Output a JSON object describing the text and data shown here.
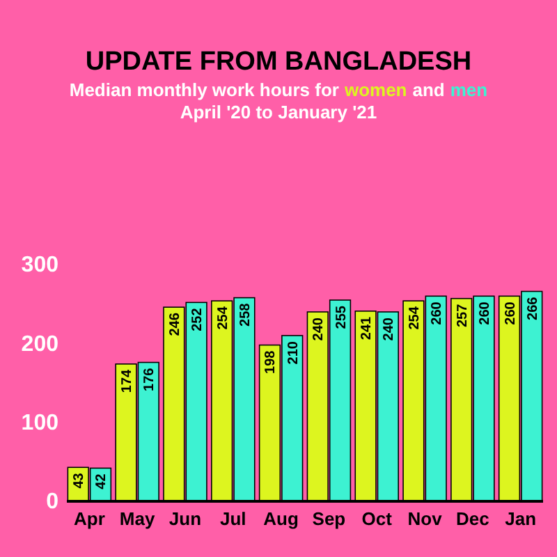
{
  "chart_data": {
    "type": "bar",
    "title": "UPDATE FROM BANGLADESH",
    "subtitle": "April '20 to January '21",
    "annotations": [
      "Median monthly work hours for",
      "and"
    ],
    "categories": [
      "Apr",
      "May",
      "Jun",
      "Jul",
      "Aug",
      "Sep",
      "Oct",
      "Nov",
      "Dec",
      "Jan"
    ],
    "series": [
      {
        "name": "women",
        "color": "#ddf51f",
        "values": [
          43,
          174,
          246,
          254,
          198,
          240,
          241,
          254,
          257,
          260
        ]
      },
      {
        "name": "men",
        "color": "#3df2d2",
        "values": [
          42,
          176,
          252,
          258,
          210,
          255,
          240,
          260,
          260,
          266
        ]
      }
    ],
    "ylim": [
      0,
      300
    ],
    "yticks": [
      0,
      100,
      200,
      300
    ],
    "grid": false,
    "legend": "top",
    "data_labels": true
  }
}
